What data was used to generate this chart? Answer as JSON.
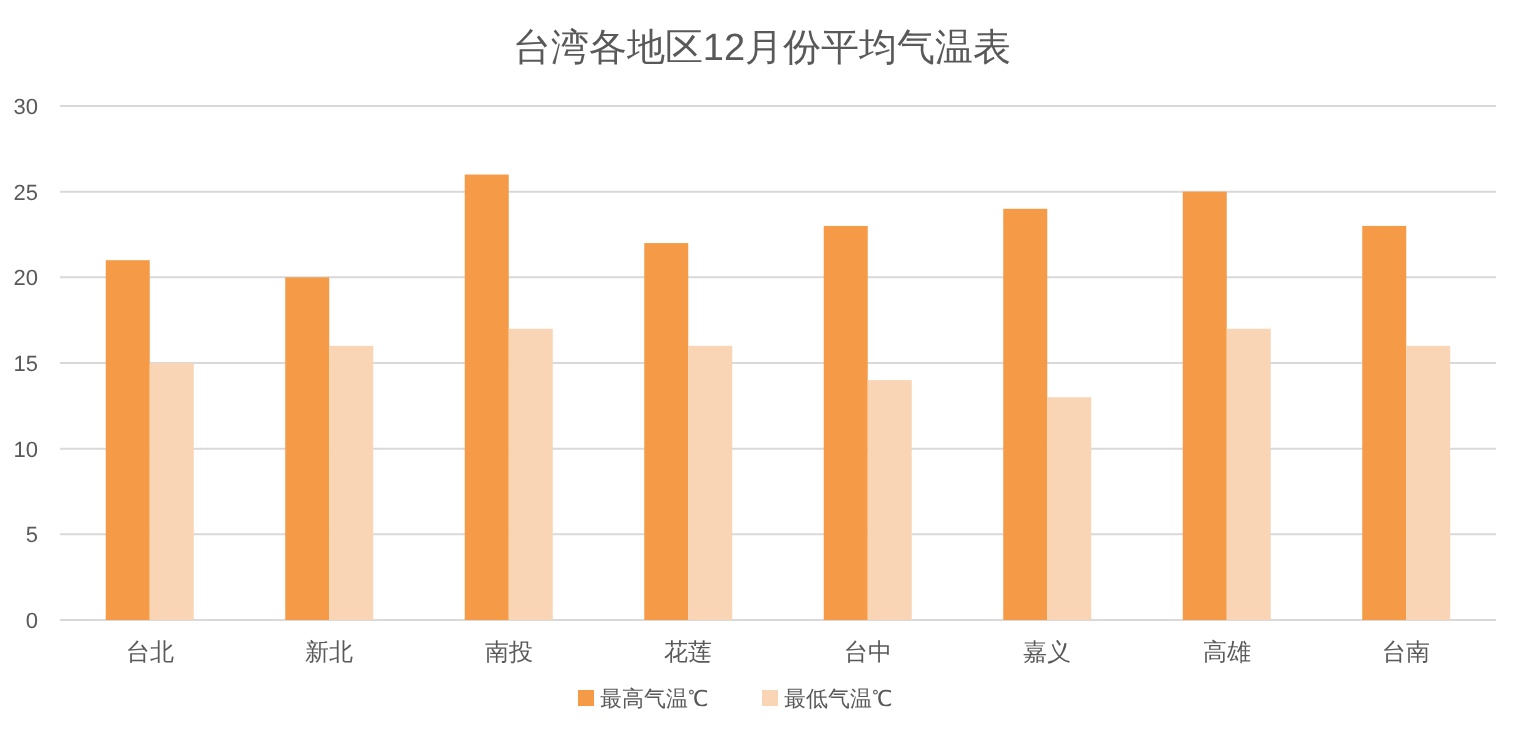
{
  "chart_data": {
    "type": "bar",
    "title": "台湾各地区12月份平均气温表",
    "categories": [
      "台北",
      "新北",
      "南投",
      "花莲",
      "台中",
      "嘉义",
      "高雄",
      "台南"
    ],
    "series": [
      {
        "name": "最高气温℃",
        "color": "#f59b47",
        "values": [
          21,
          20,
          26,
          22,
          23,
          24,
          25,
          23
        ]
      },
      {
        "name": "最低气温℃",
        "color": "#f9d5b5",
        "values": [
          15,
          16,
          17,
          16,
          14,
          13,
          17,
          16
        ]
      }
    ],
    "ylim": [
      0,
      30
    ],
    "yticks": [
      0,
      5,
      10,
      15,
      20,
      25,
      30
    ],
    "grid": "y",
    "legend": "bottom"
  }
}
